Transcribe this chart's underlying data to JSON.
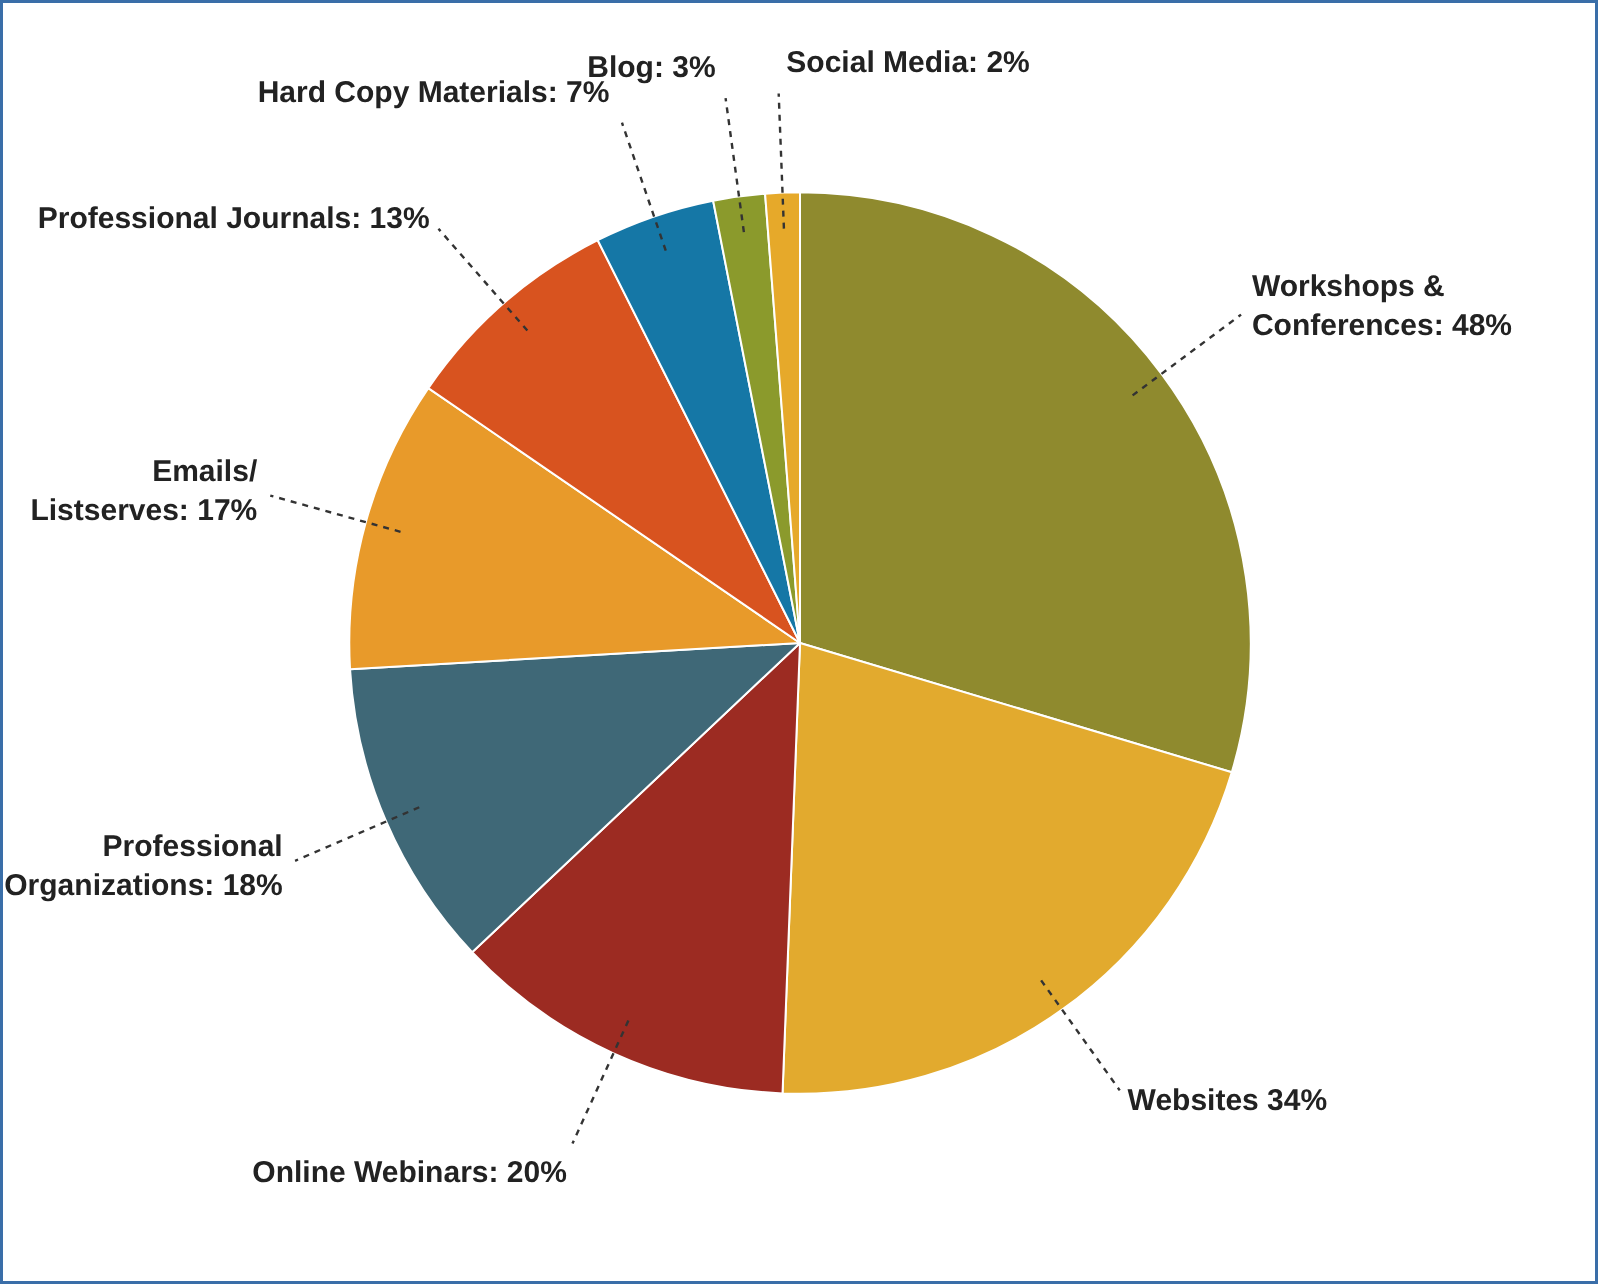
{
  "chart_data": {
    "type": "pie",
    "categories": [
      "Workshops &\nConferences: 48%",
      "Websites 34%",
      "Online Webinars: 20%",
      "Professional\nOrganizations: 18%",
      "Emails/\nListserves: 17%",
      "Professional Journals: 13%",
      "Hard Copy Materials: 7%",
      "Blog: 3%",
      "Social Media: 2%"
    ],
    "values": [
      48,
      34,
      20,
      18,
      17,
      13,
      7,
      3,
      2
    ],
    "colors": [
      "#8f8a2e",
      "#e2aa2e",
      "#9c2b22",
      "#3f6877",
      "#e89a2a",
      "#d8531f",
      "#1577a6",
      "#8b9a2c",
      "#e6a92a"
    ]
  }
}
